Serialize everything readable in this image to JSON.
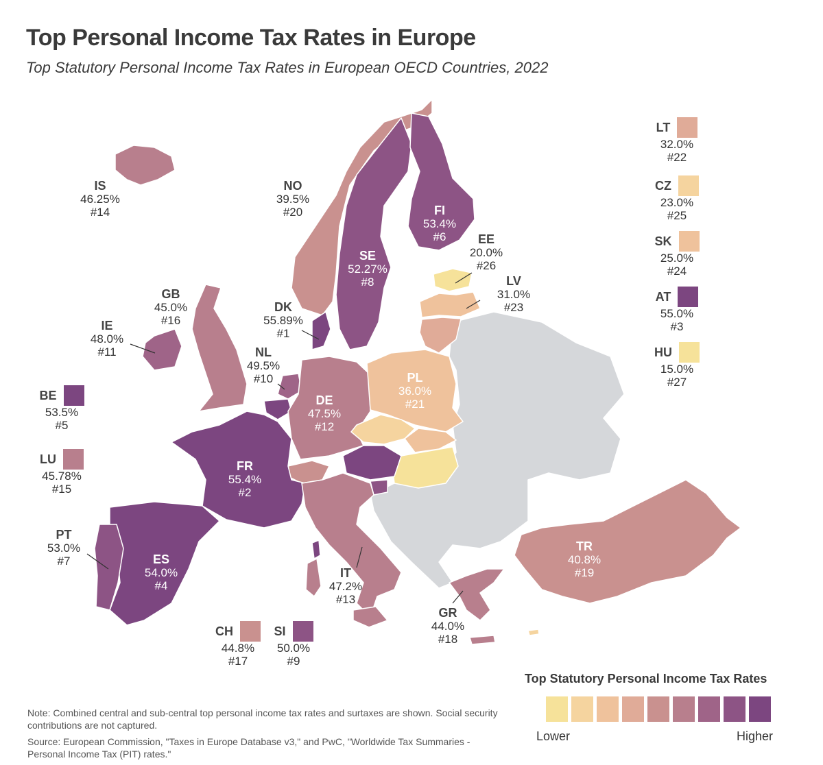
{
  "title": "Top Personal Income Tax Rates in Europe",
  "subtitle": "Top Statutory Personal Income Tax Rates in European OECD Countries, 2022",
  "colors": {
    "c1": "#f6e29a",
    "c2": "#f5d49f",
    "c3": "#efc29c",
    "c4": "#e0ab98",
    "c5": "#c9918f",
    "c6": "#b87f8d",
    "c7": "#9f6488",
    "c8": "#8d5485",
    "c9": "#7c4680",
    "nodata": "#d5d7da",
    "sea": "#ffffff"
  },
  "countries": {
    "IS": {
      "code": "IS",
      "rate": "46.25%",
      "rank": "#14"
    },
    "NO": {
      "code": "NO",
      "rate": "39.5%",
      "rank": "#20"
    },
    "SE": {
      "code": "SE",
      "rate": "52.27%",
      "rank": "#8"
    },
    "FI": {
      "code": "FI",
      "rate": "53.4%",
      "rank": "#6"
    },
    "EE": {
      "code": "EE",
      "rate": "20.0%",
      "rank": "#26"
    },
    "LV": {
      "code": "LV",
      "rate": "31.0%",
      "rank": "#23"
    },
    "GB": {
      "code": "GB",
      "rate": "45.0%",
      "rank": "#16"
    },
    "DK": {
      "code": "DK",
      "rate": "55.89%",
      "rank": "#1"
    },
    "IE": {
      "code": "IE",
      "rate": "48.0%",
      "rank": "#11"
    },
    "NL": {
      "code": "NL",
      "rate": "49.5%",
      "rank": "#10"
    },
    "PL": {
      "code": "PL",
      "rate": "36.0%",
      "rank": "#21"
    },
    "DE": {
      "code": "DE",
      "rate": "47.5%",
      "rank": "#12"
    },
    "FR": {
      "code": "FR",
      "rate": "55.4%",
      "rank": "#2"
    },
    "ES": {
      "code": "ES",
      "rate": "54.0%",
      "rank": "#4"
    },
    "PT": {
      "code": "PT",
      "rate": "53.0%",
      "rank": "#7"
    },
    "IT": {
      "code": "IT",
      "rate": "47.2%",
      "rank": "#13"
    },
    "GR": {
      "code": "GR",
      "rate": "44.0%",
      "rank": "#18"
    },
    "TR": {
      "code": "TR",
      "rate": "40.8%",
      "rank": "#19"
    },
    "CH": {
      "code": "CH",
      "rate": "44.8%",
      "rank": "#17"
    },
    "SI": {
      "code": "SI",
      "rate": "50.0%",
      "rank": "#9"
    },
    "BE": {
      "code": "BE",
      "rate": "53.5%",
      "rank": "#5"
    },
    "LU": {
      "code": "LU",
      "rate": "45.78%",
      "rank": "#15"
    },
    "LT": {
      "code": "LT",
      "rate": "32.0%",
      "rank": "#22"
    },
    "CZ": {
      "code": "CZ",
      "rate": "23.0%",
      "rank": "#25"
    },
    "SK": {
      "code": "SK",
      "rate": "25.0%",
      "rank": "#24"
    },
    "AT": {
      "code": "AT",
      "rate": "55.0%",
      "rank": "#3"
    },
    "HU": {
      "code": "HU",
      "rate": "15.0%",
      "rank": "#27"
    }
  },
  "legend": {
    "title": "Top Statutory Personal Income Tax Rates",
    "low": "Lower",
    "high": "Higher"
  },
  "note": "Note: Combined central and sub-central top personal income tax rates and surtaxes are shown. Social security contributions are not captured.",
  "source": "Source: European Commission, \"Taxes in Europe Database v3,\" and PwC, \"Worldwide Tax Summaries - Personal Income Tax (PIT) rates.\""
}
